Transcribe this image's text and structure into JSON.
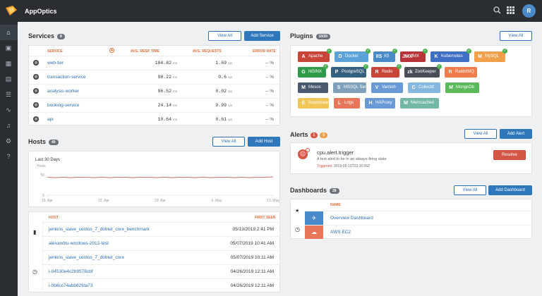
{
  "app": {
    "title": "AppOptics",
    "avatar_letter": "R"
  },
  "services": {
    "title": "Services",
    "count": "8",
    "view_all": "View All",
    "add": "Add Service",
    "headers": {
      "service": "SERVICE",
      "resp": "AVG. RESP. TIME",
      "req": "AVG. REQUESTS",
      "err": "ERROR RATE"
    },
    "rows": [
      {
        "name": "web-tier",
        "resp": "184.82",
        "resp_unit": "ms",
        "req": "1.69",
        "req_unit": "rps",
        "err": "-- %"
      },
      {
        "name": "transaction-service",
        "resp": "98.22",
        "resp_unit": "ms",
        "req": "0.6",
        "req_unit": "rps",
        "err": "-- %"
      },
      {
        "name": "analysis-worker",
        "resp": "96.52",
        "resp_unit": "ms",
        "req": "0.02",
        "req_unit": "rps",
        "err": "-- %"
      },
      {
        "name": "booking-service",
        "resp": "24.14",
        "resp_unit": "ms",
        "req": "9.99",
        "req_unit": "rps",
        "err": "-- %"
      },
      {
        "name": "api",
        "resp": "10.64",
        "resp_unit": "ms",
        "req": "0.61",
        "req_unit": "rps",
        "err": "-- %"
      }
    ]
  },
  "hosts": {
    "title": "Hosts",
    "count": "49",
    "view_all": "View All",
    "add": "Add Host",
    "chart": {
      "title": "Last 30 Days",
      "ylabel": "Hosts",
      "yticks": [
        "50",
        "0"
      ],
      "xticks": [
        "15. Apr",
        "22. Apr",
        "29. Apr",
        "6. May",
        "13. May"
      ]
    },
    "headers": {
      "host": "HOST",
      "first_seen": "FIRST SEEN"
    },
    "rows": [
      {
        "name": "jenkins_slave_centos_7_dotnet_core_benchmark",
        "seen": "05/13/2019 2:41 PM"
      },
      {
        "name": "alexandru-windows-2012-test",
        "seen": "05/07/2019 10:41 AM"
      },
      {
        "name": "jenkins_slave_centos_7_dotnet_core",
        "seen": "05/07/2019 10:11 AM"
      },
      {
        "name": "i-04530e4c2b9578cbf",
        "seen": "04/26/2019 12:11 AM"
      },
      {
        "name": "i-0b6cc74abb62fda73",
        "seen": "04/26/2019 12:11 AM"
      }
    ]
  },
  "chart_data": {
    "type": "line",
    "title": "Last 30 Days",
    "ylabel": "Hosts",
    "ylim": [
      0,
      50
    ],
    "xticks": [
      "15. Apr",
      "22. Apr",
      "29. Apr",
      "6. May",
      "13. May"
    ],
    "series": [
      {
        "values": [
          44,
          43,
          44,
          43,
          44,
          44,
          43,
          44,
          43,
          44,
          44,
          43,
          44,
          44,
          43,
          44,
          43,
          44,
          44,
          43,
          44,
          43,
          44,
          44,
          43,
          44,
          43,
          44,
          44,
          45
        ]
      }
    ]
  },
  "plugins": {
    "title": "Plugins",
    "count": "10/20",
    "view_all": "View All",
    "items": [
      {
        "name": "Apache",
        "color": "#c8453a",
        "icon": "A",
        "checked": true
      },
      {
        "name": "Docker",
        "color": "#5aa2d8",
        "icon": "D",
        "checked": true
      },
      {
        "name": "IIS",
        "color": "#4a8ac9",
        "icon": "IIS",
        "checked": true
      },
      {
        "name": "JMX",
        "color": "#b8333a",
        "icon": "JMX",
        "checked": true
      },
      {
        "name": "Kubernetes",
        "color": "#3f6fc4",
        "icon": "K",
        "checked": true
      },
      {
        "name": "MySQL",
        "color": "#f0a04b",
        "icon": "M",
        "checked": true
      },
      {
        "name": "NGINX",
        "color": "#2f9a49",
        "icon": "G",
        "checked": true
      },
      {
        "name": "PostgreSQL",
        "color": "#35607f",
        "icon": "P",
        "checked": true
      },
      {
        "name": "Redis",
        "color": "#c8453a",
        "icon": "R",
        "checked": true
      },
      {
        "name": "ZooKeeper",
        "color": "#4a4f57",
        "icon": "zk",
        "checked": true
      },
      {
        "name": "RabbitMQ",
        "color": "#f07c4b",
        "icon": "R",
        "checked": false
      },
      {
        "name": "Mesos",
        "color": "#4a5a6e",
        "icon": "M",
        "checked": false
      },
      {
        "name": "MSSQL Server",
        "color": "#7fa0b8",
        "icon": "S",
        "checked": false
      },
      {
        "name": "Varnish",
        "color": "#6a9ad6",
        "icon": "V",
        "checked": false
      },
      {
        "name": "Collectd",
        "color": "#84b8de",
        "icon": "C",
        "checked": false
      },
      {
        "name": "MongoDb",
        "color": "#5cba5c",
        "icon": "M",
        "checked": false
      },
      {
        "name": "Elasticsearch",
        "color": "#f0c659",
        "icon": "E",
        "checked": false
      },
      {
        "name": "Logs",
        "color": "#e8765a",
        "icon": "L",
        "checked": false
      },
      {
        "name": "HAProxy",
        "color": "#6a9ad6",
        "icon": "H",
        "checked": false
      },
      {
        "name": "Memcached",
        "color": "#73b7a5",
        "icon": "M",
        "checked": false
      }
    ]
  },
  "alerts": {
    "title": "Alerts",
    "count_red": "1",
    "count_orange": "0",
    "view_all": "View All",
    "add": "Add Alert",
    "item": {
      "name": "cpu.alert.trigger",
      "desc": "A test alert to be in an always-firing state",
      "status": "Triggered",
      "time": "2019-05-13T23:10:06Z",
      "resolve": "Resolve"
    }
  },
  "dashboards": {
    "title": "Dashboards",
    "count": "28",
    "view_all": "View All",
    "add": "Add Dashboard",
    "header": "NAME",
    "rows": [
      {
        "name": "Overview Dashboard",
        "color": "#4a8ac9"
      },
      {
        "name": "AWS EC2",
        "color": "#e8765a"
      }
    ]
  },
  "colors": {
    "topbar": "#2a2e33",
    "accent": "#2f77bb",
    "header_orange": "#e0703a"
  }
}
